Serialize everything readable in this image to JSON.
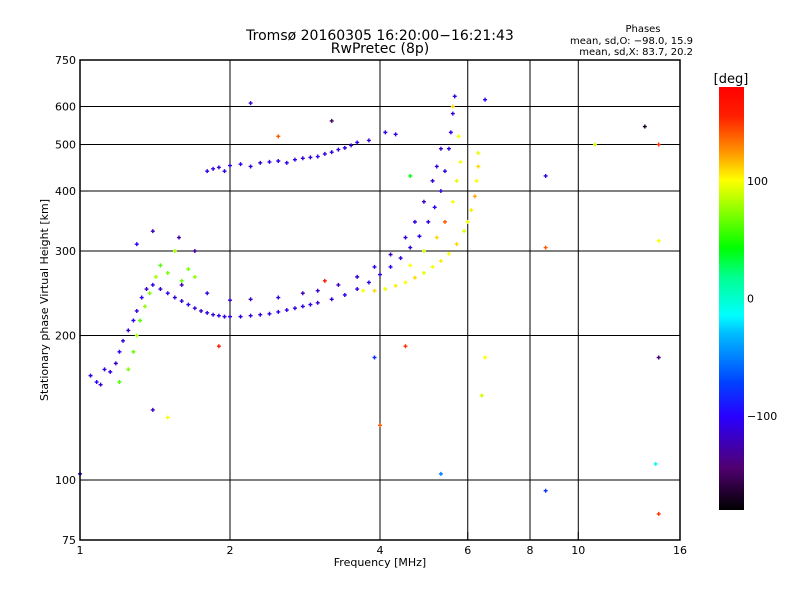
{
  "chart_data": {
    "type": "scatter",
    "title": "Tromsø 20160305 16:20:00−16:21:43",
    "subtitle": "RwPretec (8p)",
    "stats": {
      "heading": "Phases",
      "o_line": "mean, sd,O: −98.0, 15.9",
      "x_line": "mean, sd,X:  83.7, 20.2"
    },
    "xlabel": "Frequency [MHz]",
    "ylabel": "Stationary phase Virtual Height [km]",
    "xscale": "log",
    "yscale": "log",
    "xlim": [
      1,
      16
    ],
    "ylim": [
      75,
      750
    ],
    "xticks": [
      1,
      2,
      4,
      6,
      8,
      10,
      16
    ],
    "xtick_labels": [
      "1",
      "2",
      "4",
      "6",
      "8",
      "10",
      "16"
    ],
    "xgrid": [
      2,
      4,
      6,
      8,
      10
    ],
    "yticks": [
      75,
      100,
      200,
      300,
      400,
      500,
      600,
      750
    ],
    "ytick_labels": [
      "75",
      "100",
      "200",
      "300",
      "400",
      "500",
      "600",
      "750"
    ],
    "ygrid": [
      100,
      200,
      300,
      400,
      500,
      600
    ],
    "grid": true,
    "colorbar": {
      "label": "[deg]",
      "range": [
        -180,
        180
      ],
      "ticks": [
        100,
        0,
        -100
      ],
      "tick_labels": [
        "100",
        "0",
        "−100"
      ]
    },
    "point_format": [
      "frequency_MHz",
      "height_km",
      "phase_deg"
    ],
    "points": [
      [
        1.05,
        165,
        -110
      ],
      [
        1.08,
        160,
        -100
      ],
      [
        1.1,
        158,
        -115
      ],
      [
        1.12,
        170,
        -105
      ],
      [
        1.15,
        168,
        -110
      ],
      [
        1.18,
        175,
        -120
      ],
      [
        1.2,
        185,
        -100
      ],
      [
        1.22,
        195,
        -110
      ],
      [
        1.25,
        205,
        -115
      ],
      [
        1.28,
        215,
        -105
      ],
      [
        1.3,
        225,
        -110
      ],
      [
        1.33,
        240,
        -100
      ],
      [
        1.36,
        250,
        -120
      ],
      [
        1.4,
        255,
        -110
      ],
      [
        1.45,
        250,
        -115
      ],
      [
        1.5,
        245,
        -105
      ],
      [
        1.55,
        240,
        -110
      ],
      [
        1.6,
        236,
        -110
      ],
      [
        1.65,
        232,
        -105
      ],
      [
        1.7,
        228,
        -110
      ],
      [
        1.75,
        225,
        -115
      ],
      [
        1.8,
        223,
        -110
      ],
      [
        1.85,
        221,
        -110
      ],
      [
        1.9,
        220,
        -105
      ],
      [
        1.95,
        219,
        -110
      ],
      [
        2.0,
        219,
        -108
      ],
      [
        2.1,
        219,
        -110
      ],
      [
        2.2,
        220,
        -112
      ],
      [
        2.3,
        221,
        -108
      ],
      [
        2.4,
        222,
        -110
      ],
      [
        2.5,
        224,
        -105
      ],
      [
        2.6,
        226,
        -110
      ],
      [
        2.7,
        228,
        -110
      ],
      [
        2.8,
        230,
        -108
      ],
      [
        2.9,
        232,
        -110
      ],
      [
        3.0,
        234,
        -112
      ],
      [
        3.2,
        238,
        -110
      ],
      [
        3.4,
        243,
        -105
      ],
      [
        3.6,
        250,
        -110
      ],
      [
        3.8,
        258,
        -108
      ],
      [
        4.0,
        268,
        -110
      ],
      [
        4.2,
        278,
        -105
      ],
      [
        4.4,
        290,
        -110
      ],
      [
        4.6,
        305,
        -112
      ],
      [
        4.8,
        322,
        -108
      ],
      [
        5.0,
        345,
        -110
      ],
      [
        5.15,
        370,
        -105
      ],
      [
        5.3,
        400,
        -110
      ],
      [
        5.4,
        440,
        -108
      ],
      [
        5.5,
        490,
        -110
      ],
      [
        5.55,
        530,
        -105
      ],
      [
        5.6,
        580,
        -110
      ],
      [
        5.65,
        630,
        -112
      ],
      [
        1.6,
        255,
        -120
      ],
      [
        1.8,
        245,
        -110
      ],
      [
        2.0,
        237,
        -115
      ],
      [
        2.2,
        238,
        -120
      ],
      [
        2.5,
        240,
        -110
      ],
      [
        2.8,
        245,
        -125
      ],
      [
        3.0,
        248,
        -115
      ],
      [
        3.3,
        255,
        -120
      ],
      [
        3.6,
        265,
        -115
      ],
      [
        3.9,
        278,
        -110
      ],
      [
        4.2,
        295,
        -120
      ],
      [
        4.5,
        320,
        -115
      ],
      [
        4.7,
        345,
        -110
      ],
      [
        4.9,
        380,
        -120
      ],
      [
        5.1,
        420,
        -115
      ],
      [
        5.2,
        450,
        -110
      ],
      [
        5.3,
        490,
        -120
      ],
      [
        1.8,
        440,
        -110
      ],
      [
        1.85,
        445,
        -105
      ],
      [
        1.9,
        448,
        -115
      ],
      [
        1.95,
        440,
        -110
      ],
      [
        2.0,
        452,
        -110
      ],
      [
        2.1,
        455,
        -105
      ],
      [
        2.2,
        450,
        -110
      ],
      [
        2.3,
        458,
        -115
      ],
      [
        2.4,
        460,
        -110
      ],
      [
        2.5,
        462,
        -105
      ],
      [
        2.6,
        458,
        -110
      ],
      [
        2.7,
        465,
        -108
      ],
      [
        2.8,
        468,
        -112
      ],
      [
        2.9,
        470,
        -110
      ],
      [
        3.0,
        472,
        -105
      ],
      [
        3.1,
        478,
        -110
      ],
      [
        3.2,
        482,
        -115
      ],
      [
        3.3,
        488,
        -110
      ],
      [
        3.4,
        492,
        -105
      ],
      [
        3.5,
        498,
        -110
      ],
      [
        3.6,
        505,
        -108
      ],
      [
        3.8,
        510,
        -112
      ],
      [
        4.1,
        530,
        -110
      ],
      [
        4.3,
        525,
        -105
      ],
      [
        3.7,
        248,
        100
      ],
      [
        3.9,
        248,
        110
      ],
      [
        4.1,
        250,
        95
      ],
      [
        4.3,
        254,
        105
      ],
      [
        4.5,
        258,
        100
      ],
      [
        4.7,
        264,
        110
      ],
      [
        4.9,
        270,
        95
      ],
      [
        5.1,
        278,
        100
      ],
      [
        5.3,
        286,
        105
      ],
      [
        5.5,
        296,
        100
      ],
      [
        5.7,
        310,
        110
      ],
      [
        5.9,
        330,
        95
      ],
      [
        6.0,
        345,
        100
      ],
      [
        6.1,
        365,
        105
      ],
      [
        6.2,
        390,
        120
      ],
      [
        6.25,
        420,
        100
      ],
      [
        6.3,
        450,
        110
      ],
      [
        6.3,
        480,
        95
      ],
      [
        4.6,
        280,
        100
      ],
      [
        4.9,
        300,
        90
      ],
      [
        5.2,
        320,
        110
      ],
      [
        5.4,
        345,
        140
      ],
      [
        5.6,
        380,
        100
      ],
      [
        5.7,
        420,
        95
      ],
      [
        5.8,
        460,
        100
      ],
      [
        5.75,
        520,
        100
      ],
      [
        5.6,
        600,
        110
      ],
      [
        1.2,
        160,
        60
      ],
      [
        1.25,
        170,
        70
      ],
      [
        1.28,
        185,
        65
      ],
      [
        1.3,
        200,
        80
      ],
      [
        1.32,
        215,
        60
      ],
      [
        1.35,
        230,
        75
      ],
      [
        1.38,
        245,
        70
      ],
      [
        1.42,
        265,
        80
      ],
      [
        1.45,
        280,
        60
      ],
      [
        1.5,
        270,
        70
      ],
      [
        1.55,
        300,
        80
      ],
      [
        1.6,
        260,
        65
      ],
      [
        1.65,
        275,
        70
      ],
      [
        1.7,
        265,
        75
      ],
      [
        1.58,
        320,
        -130
      ],
      [
        1.4,
        330,
        -120
      ],
      [
        1.3,
        310,
        -100
      ],
      [
        1.7,
        300,
        -130
      ],
      [
        2.2,
        610,
        -120
      ],
      [
        2.5,
        520,
        140
      ],
      [
        3.2,
        560,
        -150
      ],
      [
        3.1,
        260,
        160
      ],
      [
        4.6,
        430,
        40
      ],
      [
        6.5,
        620,
        -100
      ],
      [
        8.6,
        430,
        -110
      ],
      [
        8.6,
        305,
        140
      ],
      [
        10.8,
        500,
        90
      ],
      [
        13.6,
        545,
        -170
      ],
      [
        14.5,
        500,
        150
      ],
      [
        14.5,
        315,
        100
      ],
      [
        14.5,
        180,
        -140
      ],
      [
        14.3,
        108,
        -10
      ],
      [
        14.5,
        85,
        150
      ],
      [
        8.6,
        95,
        -80
      ],
      [
        5.3,
        103,
        -50
      ],
      [
        1.0,
        103,
        -100
      ],
      [
        3.9,
        180,
        -80
      ],
      [
        4.5,
        190,
        150
      ],
      [
        6.4,
        150,
        90
      ],
      [
        6.5,
        180,
        100
      ],
      [
        4.0,
        130,
        140
      ],
      [
        1.9,
        190,
        160
      ],
      [
        1.5,
        135,
        100
      ],
      [
        1.4,
        140,
        -120
      ]
    ]
  }
}
